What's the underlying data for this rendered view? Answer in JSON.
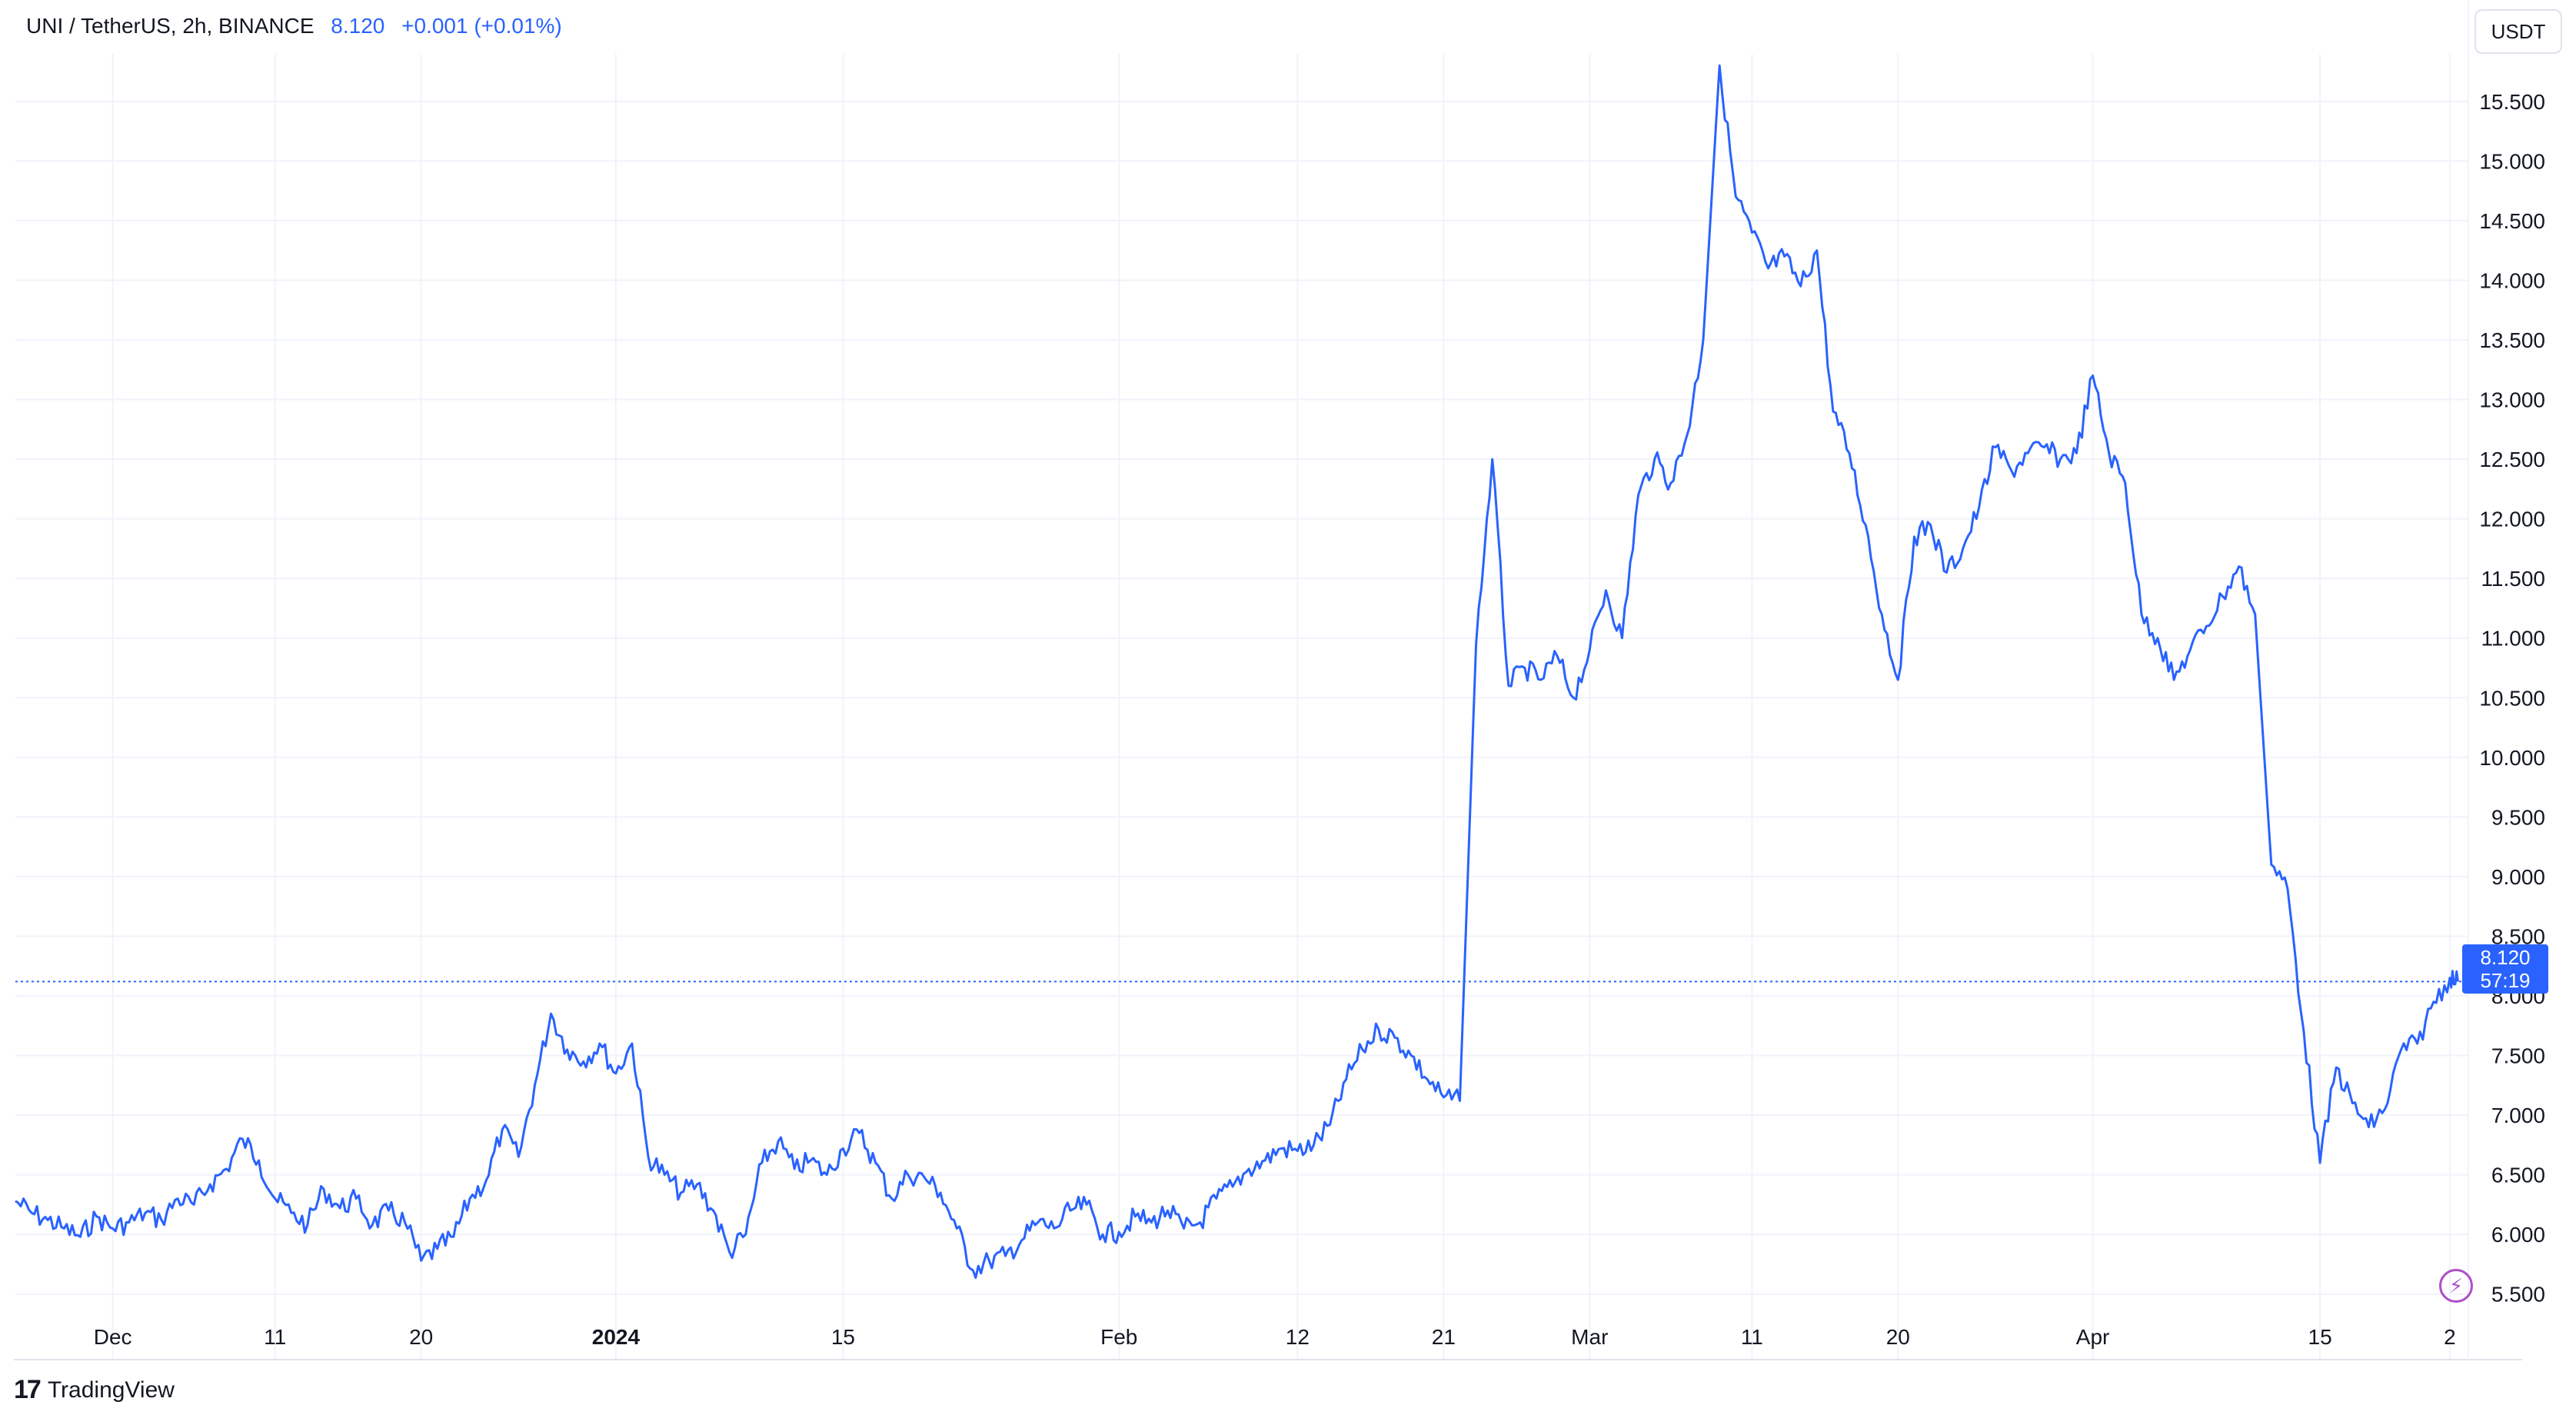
{
  "header": {
    "symbol": "UNI / TetherUS, 2h, BINANCE",
    "last_value": "8.120",
    "change": "+0.001 (+0.01%)"
  },
  "toolbar": {
    "currency": "USDT"
  },
  "last_price_tag": {
    "price": "8.120",
    "countdown": "57:19"
  },
  "branding": {
    "name": "TradingView"
  },
  "colors": {
    "line": "#2962ff",
    "grid": "#f0f3fa",
    "axis_text": "#131722"
  },
  "icons": {
    "lightning": "lightning-icon",
    "logo": "tradingview-logo-icon"
  },
  "chart_data": {
    "type": "line",
    "title": "UNI / TetherUS, 2h, BINANCE",
    "xlabel": "",
    "ylabel": "",
    "ylim": [
      4.95,
      16.35
    ],
    "y_ticks": [
      "5.500",
      "6.000",
      "6.500",
      "7.000",
      "7.500",
      "8.000",
      "8.500",
      "9.000",
      "9.500",
      "10.000",
      "10.500",
      "11.000",
      "11.500",
      "12.000",
      "12.500",
      "13.000",
      "13.500",
      "14.000",
      "14.500",
      "15.000",
      "15.500"
    ],
    "x_ticks": [
      {
        "label": "Dec",
        "date": "2023-12-01",
        "bold": false
      },
      {
        "label": "11",
        "date": "2023-12-11",
        "bold": false
      },
      {
        "label": "20",
        "date": "2023-12-20",
        "bold": false
      },
      {
        "label": "2024",
        "date": "2024-01-01",
        "bold": true
      },
      {
        "label": "15",
        "date": "2024-01-15",
        "bold": false
      },
      {
        "label": "Feb",
        "date": "2024-02-01",
        "bold": false
      },
      {
        "label": "12",
        "date": "2024-02-12",
        "bold": false
      },
      {
        "label": "21",
        "date": "2024-02-21",
        "bold": false
      },
      {
        "label": "Mar",
        "date": "2024-03-01",
        "bold": false
      },
      {
        "label": "11",
        "date": "2024-03-11",
        "bold": false
      },
      {
        "label": "20",
        "date": "2024-03-20",
        "bold": false
      },
      {
        "label": "Apr",
        "date": "2024-04-01",
        "bold": false
      },
      {
        "label": "15",
        "date": "2024-04-15",
        "bold": false
      },
      {
        "label": "2",
        "date": "2024-04-23",
        "bold": false
      }
    ],
    "last_price": 8.12,
    "series": [
      {
        "values": [
          [
            "2023-11-25",
            6.28
          ],
          [
            "2023-11-26",
            6.18
          ],
          [
            "2023-11-27",
            6.12
          ],
          [
            "2023-11-28",
            6.05
          ],
          [
            "2023-11-29",
            5.98
          ],
          [
            "2023-11-30",
            6.15
          ],
          [
            "2023-12-01",
            6.05
          ],
          [
            "2023-12-02",
            6.1
          ],
          [
            "2023-12-03",
            6.18
          ],
          [
            "2023-12-04",
            6.12
          ],
          [
            "2023-12-05",
            6.3
          ],
          [
            "2023-12-06",
            6.25
          ],
          [
            "2023-12-07",
            6.42
          ],
          [
            "2023-12-08",
            6.55
          ],
          [
            "2023-12-09",
            6.8
          ],
          [
            "2023-12-10",
            6.62
          ],
          [
            "2023-12-11",
            6.3
          ],
          [
            "2023-12-12",
            6.18
          ],
          [
            "2023-12-13",
            6.08
          ],
          [
            "2023-12-14",
            6.38
          ],
          [
            "2023-12-15",
            6.22
          ],
          [
            "2023-12-16",
            6.3
          ],
          [
            "2023-12-17",
            6.08
          ],
          [
            "2023-12-18",
            6.2
          ],
          [
            "2023-12-19",
            6.1
          ],
          [
            "2023-12-20",
            5.78
          ],
          [
            "2023-12-21",
            5.88
          ],
          [
            "2023-12-22",
            5.98
          ],
          [
            "2023-12-23",
            6.3
          ],
          [
            "2023-12-24",
            6.45
          ],
          [
            "2023-12-25",
            6.88
          ],
          [
            "2023-12-26",
            6.65
          ],
          [
            "2023-12-27",
            7.25
          ],
          [
            "2023-12-28",
            7.85
          ],
          [
            "2023-12-29",
            7.55
          ],
          [
            "2023-12-30",
            7.45
          ],
          [
            "2023-12-31",
            7.6
          ],
          [
            "2024-01-01",
            7.35
          ],
          [
            "2024-01-02",
            7.6
          ],
          [
            "2024-01-03",
            6.65
          ],
          [
            "2024-01-04",
            6.5
          ],
          [
            "2024-01-05",
            6.35
          ],
          [
            "2024-01-06",
            6.42
          ],
          [
            "2024-01-07",
            6.2
          ],
          [
            "2024-01-08",
            5.85
          ],
          [
            "2024-01-09",
            6.0
          ],
          [
            "2024-01-10",
            6.6
          ],
          [
            "2024-01-11",
            6.78
          ],
          [
            "2024-01-12",
            6.55
          ],
          [
            "2024-01-13",
            6.62
          ],
          [
            "2024-01-14",
            6.5
          ],
          [
            "2024-01-15",
            6.72
          ],
          [
            "2024-01-16",
            6.85
          ],
          [
            "2024-01-17",
            6.6
          ],
          [
            "2024-01-18",
            6.3
          ],
          [
            "2024-01-19",
            6.5
          ],
          [
            "2024-01-20",
            6.48
          ],
          [
            "2024-01-21",
            6.35
          ],
          [
            "2024-01-22",
            6.05
          ],
          [
            "2024-01-23",
            5.7
          ],
          [
            "2024-01-24",
            5.78
          ],
          [
            "2024-01-25",
            5.82
          ],
          [
            "2024-01-26",
            5.95
          ],
          [
            "2024-01-27",
            6.1
          ],
          [
            "2024-01-28",
            6.05
          ],
          [
            "2024-01-29",
            6.2
          ],
          [
            "2024-01-30",
            6.25
          ],
          [
            "2024-01-31",
            6.0
          ],
          [
            "2024-02-01",
            6.02
          ],
          [
            "2024-02-02",
            6.15
          ],
          [
            "2024-02-03",
            6.1
          ],
          [
            "2024-02-04",
            6.2
          ],
          [
            "2024-02-05",
            6.05
          ],
          [
            "2024-02-06",
            6.1
          ],
          [
            "2024-02-07",
            6.3
          ],
          [
            "2024-02-08",
            6.4
          ],
          [
            "2024-02-09",
            6.55
          ],
          [
            "2024-02-10",
            6.62
          ],
          [
            "2024-02-11",
            6.72
          ],
          [
            "2024-02-12",
            6.7
          ],
          [
            "2024-02-13",
            6.75
          ],
          [
            "2024-02-14",
            6.92
          ],
          [
            "2024-02-15",
            7.3
          ],
          [
            "2024-02-16",
            7.55
          ],
          [
            "2024-02-17",
            7.72
          ],
          [
            "2024-02-18",
            7.65
          ],
          [
            "2024-02-19",
            7.5
          ],
          [
            "2024-02-20",
            7.3
          ],
          [
            "2024-02-21",
            7.15
          ],
          [
            "2024-02-22",
            7.12
          ],
          [
            "2024-02-23",
            10.95
          ],
          [
            "2024-02-24",
            12.5
          ],
          [
            "2024-02-25",
            10.6
          ],
          [
            "2024-02-26",
            10.75
          ],
          [
            "2024-02-27",
            10.65
          ],
          [
            "2024-02-28",
            10.85
          ],
          [
            "2024-02-29",
            10.5
          ],
          [
            "2024-03-01",
            10.9
          ],
          [
            "2024-03-02",
            11.4
          ],
          [
            "2024-03-03",
            11.0
          ],
          [
            "2024-03-04",
            12.2
          ],
          [
            "2024-03-05",
            12.5
          ],
          [
            "2024-03-06",
            12.3
          ],
          [
            "2024-03-07",
            12.7
          ],
          [
            "2024-03-08",
            13.5
          ],
          [
            "2024-03-09",
            15.8
          ],
          [
            "2024-03-10",
            14.7
          ],
          [
            "2024-03-11",
            14.4
          ],
          [
            "2024-03-12",
            14.1
          ],
          [
            "2024-03-13",
            14.2
          ],
          [
            "2024-03-14",
            13.95
          ],
          [
            "2024-03-15",
            14.25
          ],
          [
            "2024-03-16",
            12.9
          ],
          [
            "2024-03-17",
            12.55
          ],
          [
            "2024-03-18",
            11.95
          ],
          [
            "2024-03-19",
            11.2
          ],
          [
            "2024-03-20",
            10.65
          ],
          [
            "2024-03-21",
            11.85
          ],
          [
            "2024-03-22",
            11.95
          ],
          [
            "2024-03-23",
            11.55
          ],
          [
            "2024-03-24",
            11.75
          ],
          [
            "2024-03-25",
            12.1
          ],
          [
            "2024-03-26",
            12.6
          ],
          [
            "2024-03-27",
            12.4
          ],
          [
            "2024-03-28",
            12.55
          ],
          [
            "2024-03-29",
            12.6
          ],
          [
            "2024-03-30",
            12.5
          ],
          [
            "2024-03-31",
            12.55
          ],
          [
            "2024-04-01",
            13.2
          ],
          [
            "2024-04-02",
            12.55
          ],
          [
            "2024-04-03",
            12.3
          ],
          [
            "2024-04-04",
            11.2
          ],
          [
            "2024-04-05",
            11.0
          ],
          [
            "2024-04-06",
            10.65
          ],
          [
            "2024-04-07",
            10.9
          ],
          [
            "2024-04-08",
            11.1
          ],
          [
            "2024-04-09",
            11.35
          ],
          [
            "2024-04-10",
            11.6
          ],
          [
            "2024-04-11",
            11.2
          ],
          [
            "2024-04-12",
            9.1
          ],
          [
            "2024-04-13",
            8.9
          ],
          [
            "2024-04-14",
            7.7
          ],
          [
            "2024-04-15",
            6.6
          ],
          [
            "2024-04-16",
            7.4
          ],
          [
            "2024-04-17",
            7.1
          ],
          [
            "2024-04-18",
            6.9
          ],
          [
            "2024-04-19",
            7.05
          ],
          [
            "2024-04-20",
            7.55
          ],
          [
            "2024-04-21",
            7.6
          ],
          [
            "2024-04-22",
            7.95
          ],
          [
            "2024-04-23",
            8.15
          ],
          [
            "2024-04-23T12",
            8.12
          ]
        ]
      }
    ]
  }
}
